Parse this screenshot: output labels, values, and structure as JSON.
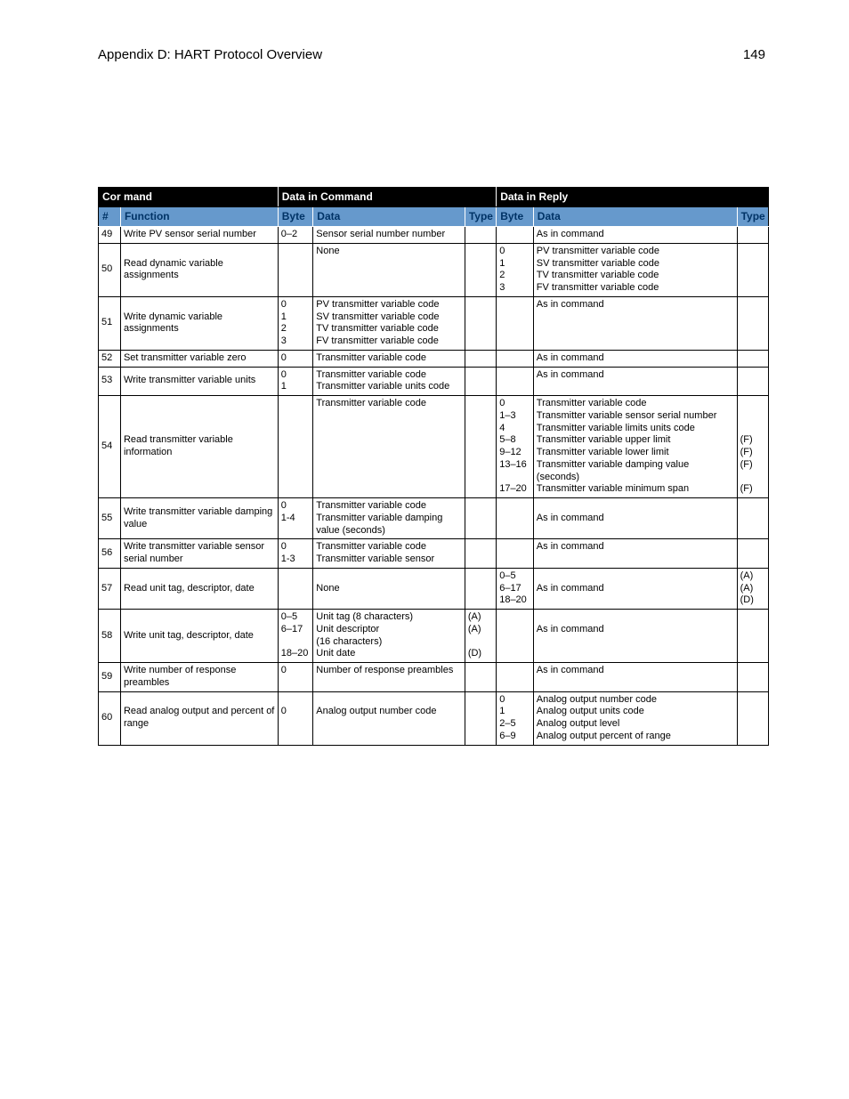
{
  "header": {
    "title": "Appendix D: HART Protocol Overview",
    "page_number": "149"
  },
  "table": {
    "group_headers": [
      "Cor mand",
      "Data in Command",
      "Data in Reply"
    ],
    "sub_headers": [
      "#",
      "Function",
      "Byte",
      "Data",
      "Type",
      "Byte",
      "Data",
      "Type"
    ],
    "rows": [
      {
        "num": "49",
        "func": "Write PV sensor serial number",
        "byte1": "0–2",
        "data1": "Sensor serial number number",
        "type1": "",
        "byte2": "",
        "data2": "As in command",
        "type2": ""
      },
      {
        "num": "50",
        "func": "Read dynamic variable assignments",
        "byte1": "",
        "data1": "None",
        "type1": "",
        "byte2": "0\n1\n2\n3",
        "data2": "PV transmitter variable code\nSV transmitter variable code\nTV transmitter variable code\nFV transmitter variable code",
        "type2": ""
      },
      {
        "num": "51",
        "func": "Write dynamic variable assignments",
        "byte1": "0\n1\n2\n3",
        "data1": "PV transmitter variable code\nSV transmitter variable code\nTV transmitter variable code\nFV transmitter variable code",
        "type1": "",
        "byte2": "",
        "data2": "As in command",
        "type2": ""
      },
      {
        "num": "52",
        "func": "Set transmitter variable zero",
        "byte1": "0",
        "data1": "Transmitter variable code",
        "type1": "",
        "byte2": "",
        "data2": "As in command",
        "type2": ""
      },
      {
        "num": "53",
        "func": "Write transmitter variable units",
        "byte1": "0\n1",
        "data1": "Transmitter variable code\nTransmitter variable units code",
        "type1": "",
        "byte2": "",
        "data2": "As in command",
        "type2": ""
      },
      {
        "num": "54",
        "func": "Read transmitter variable information",
        "byte1": "",
        "data1": "Transmitter variable code",
        "type1": "",
        "byte2": "0\n1–3\n4\n5–8\n9–12\n13–16\n\n17–20",
        "data2": "Transmitter variable code\nTransmitter variable sensor serial number\nTransmitter variable limits units code\nTransmitter variable upper limit\nTransmitter variable lower limit\nTransmitter variable damping value (seconds)\nTransmitter variable minimum span",
        "type2": "\n\n\n(F)\n(F)\n(F)\n\n(F)"
      },
      {
        "num": "55",
        "func": "Write transmitter variable damping value",
        "byte1": "0\n1-4",
        "data1": "Transmitter variable code\nTransmitter variable damping value (seconds)",
        "type1": "",
        "byte2": "",
        "data2": "\nAs in command",
        "type2": ""
      },
      {
        "num": "56",
        "func": "Write transmitter variable sensor serial number",
        "byte1": "0\n1-3",
        "data1": "Transmitter variable code\nTransmitter variable sensor",
        "type1": "",
        "byte2": "",
        "data2": "As in command",
        "type2": ""
      },
      {
        "num": "57",
        "func": "Read unit tag, descriptor, date",
        "byte1": "",
        "data1": "\nNone",
        "type1": "",
        "byte2": "0–5\n6–17\n18–20",
        "data2": "\nAs in command",
        "type2": "(A)\n(A)\n(D)"
      },
      {
        "num": "58",
        "func": "Write unit tag, descriptor, date",
        "byte1": "0–5\n6–17\n\n18–20",
        "data1": "Unit tag (8 characters)\nUnit descriptor\n(16 characters)\nUnit date",
        "type1": "(A)\n(A)\n\n(D)",
        "byte2": "",
        "data2": "\nAs in command",
        "type2": ""
      },
      {
        "num": "59",
        "func": "Write number of response preambles",
        "byte1": "0",
        "data1": "Number of response preambles",
        "type1": "",
        "byte2": "",
        "data2": "As in command",
        "type2": ""
      },
      {
        "num": "60",
        "func": "Read analog output and percent of range",
        "byte1": "\n0",
        "data1": "\nAnalog output number code",
        "type1": "",
        "byte2": "0\n1\n2–5\n6–9",
        "data2": "Analog output number code\nAnalog output units code\nAnalog output level\nAnalog output percent of range",
        "type2": ""
      }
    ]
  }
}
